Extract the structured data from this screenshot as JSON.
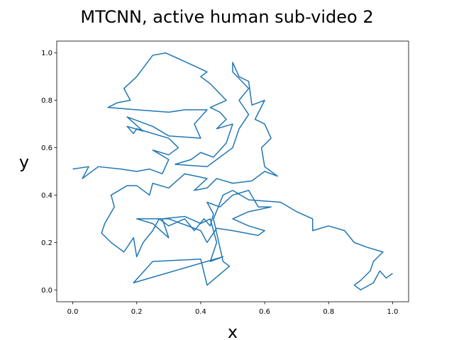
{
  "chart_data": {
    "type": "line",
    "title": "MTCNN, active human sub-video 2",
    "xlabel": "x",
    "ylabel": "y",
    "color": "#1f77b4",
    "xlim": [
      -0.05,
      1.05
    ],
    "ylim": [
      -0.05,
      1.05
    ],
    "xticks": [
      {
        "value": 0,
        "label": "0.0"
      },
      0.2,
      0.4,
      0.6,
      0.8,
      {
        "value": 1,
        "label": "1.0"
      }
    ],
    "yticks": [
      {
        "value": 0,
        "label": "0.0"
      },
      0.2,
      0.4,
      0.6,
      0.8,
      {
        "value": 1,
        "label": "1.0"
      }
    ],
    "x": [
      0.0,
      0.05,
      0.03,
      0.08,
      0.15,
      0.2,
      0.24,
      0.28,
      0.3,
      0.25,
      0.3,
      0.33,
      0.3,
      0.2,
      0.19,
      0.17,
      0.22,
      0.17,
      0.25,
      0.3,
      0.4,
      0.38,
      0.42,
      0.35,
      0.3,
      0.2,
      0.11,
      0.14,
      0.18,
      0.16,
      0.2,
      0.25,
      0.29,
      0.34,
      0.42,
      0.4,
      0.43,
      0.48,
      0.43,
      0.46,
      0.48,
      0.45,
      0.5,
      0.48,
      0.44,
      0.4,
      0.37,
      0.32,
      0.42,
      0.45,
      0.5,
      0.52,
      0.55,
      0.52,
      0.55,
      0.5,
      0.5,
      0.52,
      0.55,
      0.56,
      0.6,
      0.57,
      0.6,
      0.62,
      0.59,
      0.6,
      0.64,
      0.6,
      0.56,
      0.5,
      0.45,
      0.42,
      0.38,
      0.42,
      0.35,
      0.3,
      0.25,
      0.24,
      0.2,
      0.17,
      0.12,
      0.13,
      0.1,
      0.09,
      0.12,
      0.14,
      0.16,
      0.19,
      0.2,
      0.22,
      0.25,
      0.27,
      0.3,
      0.35,
      0.38,
      0.41,
      0.43,
      0.44,
      0.42,
      0.46,
      0.5,
      0.55,
      0.58,
      0.62,
      0.55,
      0.5,
      0.55,
      0.6,
      0.58,
      0.5,
      0.45,
      0.43,
      0.42,
      0.4,
      0.3,
      0.22,
      0.2,
      0.25,
      0.3,
      0.28,
      0.35,
      0.4,
      0.43,
      0.45,
      0.43,
      0.47,
      0.19,
      0.25,
      0.4,
      0.42,
      0.49,
      0.47,
      0.44,
      0.47,
      0.5,
      0.55,
      0.65,
      0.7,
      0.75,
      0.75,
      0.8,
      0.85,
      0.88,
      0.92,
      0.97,
      0.94,
      0.93,
      0.9,
      0.88,
      0.9,
      0.94,
      0.96,
      0.98,
      1.0
    ],
    "y": [
      0.51,
      0.52,
      0.47,
      0.52,
      0.51,
      0.5,
      0.51,
      0.49,
      0.55,
      0.59,
      0.57,
      0.6,
      0.64,
      0.68,
      0.66,
      0.69,
      0.67,
      0.73,
      0.69,
      0.65,
      0.64,
      0.7,
      0.76,
      0.76,
      0.75,
      0.76,
      0.77,
      0.79,
      0.8,
      0.85,
      0.9,
      0.99,
      1.0,
      0.97,
      0.92,
      0.9,
      0.87,
      0.8,
      0.77,
      0.75,
      0.72,
      0.68,
      0.7,
      0.62,
      0.56,
      0.58,
      0.55,
      0.53,
      0.52,
      0.55,
      0.6,
      0.68,
      0.74,
      0.8,
      0.85,
      0.92,
      0.96,
      0.9,
      0.88,
      0.78,
      0.8,
      0.72,
      0.7,
      0.64,
      0.6,
      0.52,
      0.48,
      0.5,
      0.46,
      0.45,
      0.47,
      0.43,
      0.42,
      0.47,
      0.49,
      0.43,
      0.45,
      0.4,
      0.44,
      0.44,
      0.4,
      0.35,
      0.28,
      0.24,
      0.2,
      0.18,
      0.16,
      0.22,
      0.14,
      0.2,
      0.25,
      0.3,
      0.27,
      0.3,
      0.25,
      0.3,
      0.27,
      0.32,
      0.37,
      0.35,
      0.4,
      0.42,
      0.35,
      0.35,
      0.33,
      0.3,
      0.27,
      0.25,
      0.23,
      0.25,
      0.26,
      0.22,
      0.2,
      0.25,
      0.3,
      0.3,
      0.3,
      0.28,
      0.22,
      0.3,
      0.31,
      0.28,
      0.3,
      0.2,
      0.12,
      0.14,
      0.03,
      0.12,
      0.13,
      0.02,
      0.1,
      0.12,
      0.3,
      0.4,
      0.42,
      0.38,
      0.37,
      0.33,
      0.3,
      0.25,
      0.27,
      0.25,
      0.2,
      0.18,
      0.16,
      0.12,
      0.08,
      0.04,
      0.02,
      0.0,
      0.03,
      0.08,
      0.05,
      0.07
    ]
  }
}
